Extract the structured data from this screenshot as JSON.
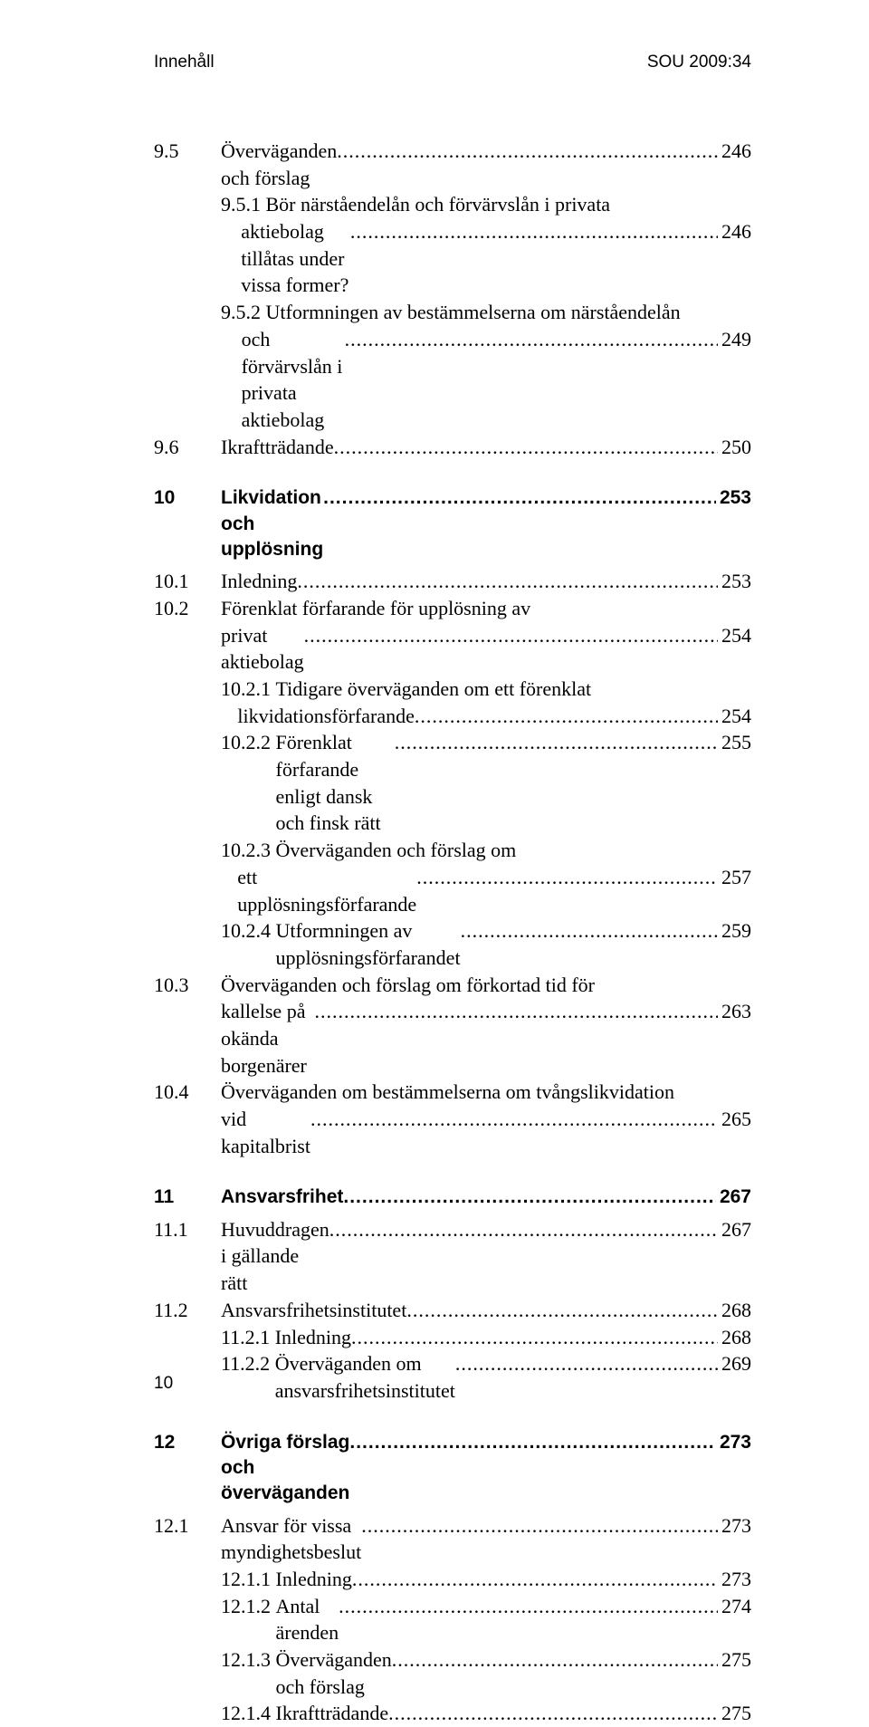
{
  "header": {
    "left": "Innehåll",
    "right": "SOU 2009:34"
  },
  "footer": {
    "page": "10"
  },
  "entries": [
    {
      "kind": "row",
      "num": "9.5",
      "title": "Överväganden och förslag",
      "page": "246",
      "style": "sec"
    },
    {
      "kind": "wrap2",
      "num": "9.5.1",
      "l1": "Bör närståendelån och förvärvslån i privata",
      "l2": "aktiebolag tillåtas under vissa former?",
      "page": "246",
      "style": "sub"
    },
    {
      "kind": "wrap2",
      "num": "9.5.2",
      "l1": "Utformningen av bestämmelserna om närståendelån",
      "l2": "och förvärvslån i privata aktiebolag",
      "page": "249",
      "style": "sub"
    },
    {
      "kind": "row",
      "num": "9.6",
      "title": "Ikraftträdande",
      "page": "250",
      "style": "sec"
    },
    {
      "kind": "gap",
      "size": "m"
    },
    {
      "kind": "row",
      "num": "10",
      "title": "Likvidation och upplösning",
      "page": "253",
      "style": "bold"
    },
    {
      "kind": "gap",
      "size": "s"
    },
    {
      "kind": "row",
      "num": "10.1",
      "title": "Inledning",
      "page": "253",
      "style": "sec"
    },
    {
      "kind": "wrap2",
      "num": "10.2",
      "l1": "Förenklat förfarande för upplösning av",
      "l2": "privat aktiebolag",
      "page": "254",
      "style": "sec"
    },
    {
      "kind": "wrap2",
      "num": "10.2.1",
      "l1": "Tidigare överväganden om ett förenklat",
      "l2": "likvidationsförfarande",
      "page": "254",
      "style": "sub"
    },
    {
      "kind": "row",
      "num": "10.2.2",
      "title": "Förenklat förfarande enligt dansk och finsk rätt",
      "page": "255",
      "style": "sub"
    },
    {
      "kind": "wrap2",
      "num": "10.2.3",
      "l1": "Överväganden och förslag om",
      "l2": "ett upplösningsförfarande",
      "page": "257",
      "style": "sub"
    },
    {
      "kind": "row",
      "num": "10.2.4",
      "title": "Utformningen av upplösningsförfarandet",
      "page": "259",
      "style": "sub"
    },
    {
      "kind": "wrap2",
      "num": "10.3",
      "l1": "Överväganden och förslag om förkortad tid för",
      "l2": "kallelse på okända borgenärer",
      "page": "263",
      "style": "sec"
    },
    {
      "kind": "wrap2",
      "num": "10.4",
      "l1": "Överväganden om bestämmelserna om tvångslikvidation",
      "l2": "vid kapitalbrist",
      "page": "265",
      "style": "sec"
    },
    {
      "kind": "gap",
      "size": "m"
    },
    {
      "kind": "row",
      "num": "11",
      "title": "Ansvarsfrihet",
      "page": "267",
      "style": "bold"
    },
    {
      "kind": "gap",
      "size": "s"
    },
    {
      "kind": "row",
      "num": "11.1",
      "title": "Huvuddragen i gällande rätt",
      "page": "267",
      "style": "sec"
    },
    {
      "kind": "row",
      "num": "11.2",
      "title": "Ansvarsfrihetsinstitutet",
      "page": "268",
      "style": "sec"
    },
    {
      "kind": "row",
      "num": "11.2.1",
      "title": "Inledning",
      "page": "268",
      "style": "sub"
    },
    {
      "kind": "row",
      "num": "11.2.2",
      "title": "Överväganden om ansvarsfrihetsinstitutet",
      "page": "269",
      "style": "sub"
    },
    {
      "kind": "gap",
      "size": "m"
    },
    {
      "kind": "row",
      "num": "12",
      "title": "Övriga förslag och överväganden",
      "page": "273",
      "style": "bold"
    },
    {
      "kind": "gap",
      "size": "s"
    },
    {
      "kind": "row",
      "num": "12.1",
      "title": "Ansvar för vissa myndighetsbeslut",
      "page": "273",
      "style": "sec"
    },
    {
      "kind": "row",
      "num": "12.1.1",
      "title": "Inledning",
      "page": "273",
      "style": "sub"
    },
    {
      "kind": "row",
      "num": "12.1.2",
      "title": "Antal ärenden",
      "page": "274",
      "style": "sub"
    },
    {
      "kind": "row",
      "num": "12.1.3",
      "title": "Överväganden och förslag",
      "page": "275",
      "style": "sub"
    },
    {
      "kind": "row",
      "num": "12.1.4",
      "title": "Ikraftträdande",
      "page": "275",
      "style": "sub"
    }
  ]
}
